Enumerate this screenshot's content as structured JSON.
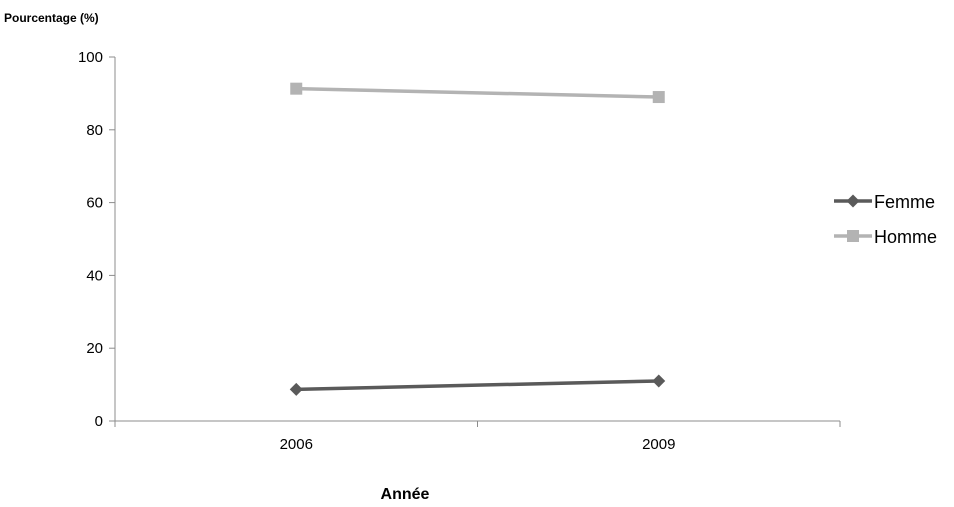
{
  "chart_data": {
    "type": "line",
    "title": "",
    "ylabel": "Pourcentage (%)",
    "xlabel": "Année",
    "categories": [
      "2006",
      "2009"
    ],
    "ylim": [
      0,
      100
    ],
    "yticks": [
      0,
      20,
      40,
      60,
      80,
      100
    ],
    "grid": false,
    "legend_position": "right",
    "series": [
      {
        "name": "Femme",
        "values": [
          8.7,
          11.0
        ],
        "color": "#5a5a5a",
        "marker": "diamond"
      },
      {
        "name": "Homme",
        "values": [
          91.3,
          89.0
        ],
        "color": "#b3b3b3",
        "marker": "square"
      }
    ]
  }
}
